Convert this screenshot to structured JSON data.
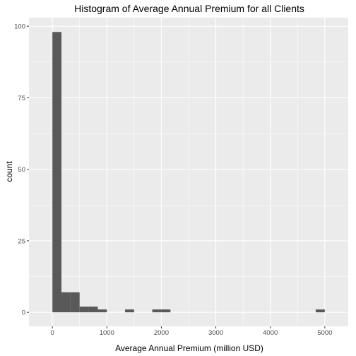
{
  "chart_data": {
    "type": "bar",
    "title": "Histogram of Average Annual Premium for all Clients",
    "xlabel": "Average Annual Premium (million USD)",
    "ylabel": "count",
    "xlim": [
      -430,
      5430
    ],
    "ylim": [
      -4.9,
      103
    ],
    "x_ticks": [
      0,
      1000,
      2000,
      3000,
      4000,
      5000
    ],
    "y_ticks": [
      0,
      25,
      50,
      75,
      100
    ],
    "bin_width": 166.7,
    "bins": [
      {
        "x0": 0,
        "x1": 166.7,
        "count": 98
      },
      {
        "x0": 166.7,
        "x1": 333.3,
        "count": 7
      },
      {
        "x0": 333.3,
        "x1": 500,
        "count": 7
      },
      {
        "x0": 500,
        "x1": 666.7,
        "count": 2
      },
      {
        "x0": 666.7,
        "x1": 833.3,
        "count": 2
      },
      {
        "x0": 833.3,
        "x1": 1000,
        "count": 1
      },
      {
        "x0": 1333.3,
        "x1": 1500,
        "count": 1
      },
      {
        "x0": 1833.3,
        "x1": 2000,
        "count": 1
      },
      {
        "x0": 2000,
        "x1": 2166.7,
        "count": 1
      },
      {
        "x0": 4833.3,
        "x1": 5000,
        "count": 1
      }
    ],
    "grid": true,
    "legend": "none",
    "colors": {
      "panel": "#ebebeb",
      "grid_major": "#ffffff",
      "bar_fill": "#595959",
      "tick_mark": "#333333",
      "tick_text": "#4d4d4d"
    }
  }
}
